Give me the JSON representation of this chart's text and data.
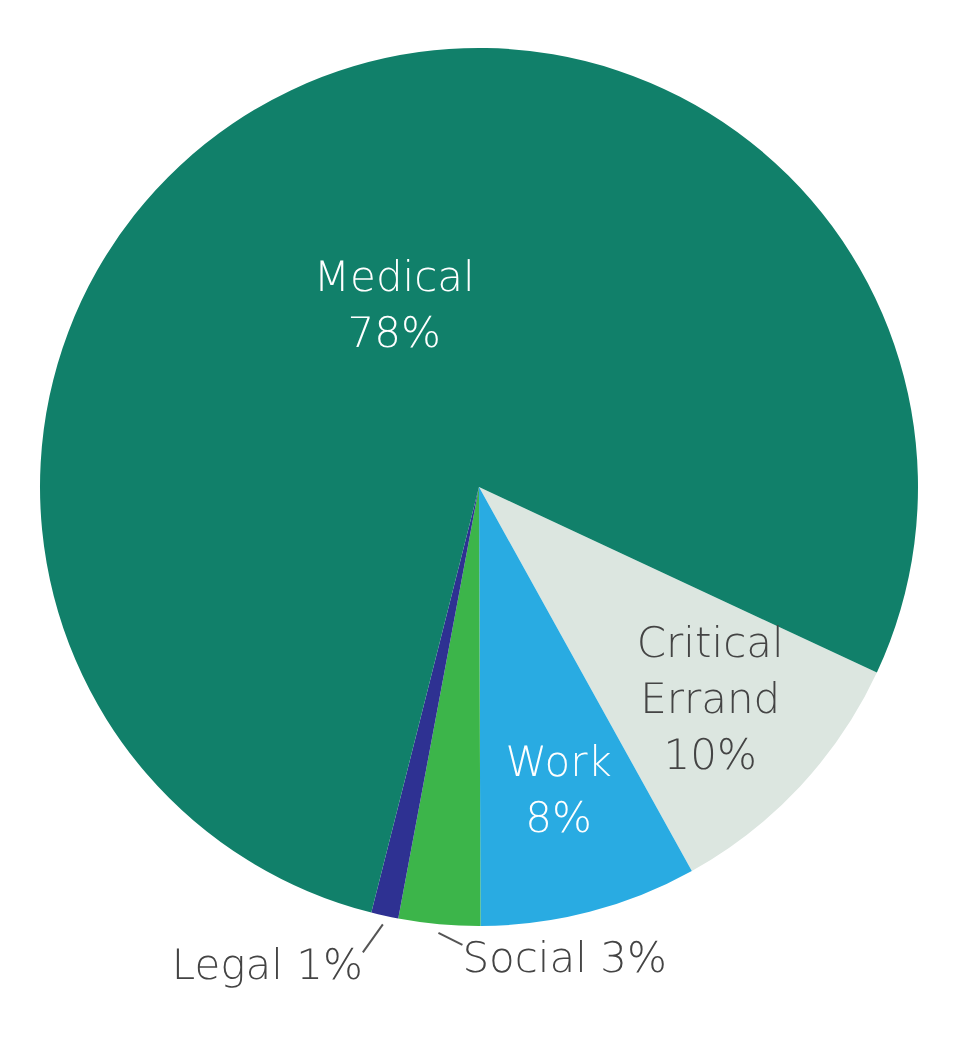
{
  "chart_data": {
    "type": "pie",
    "categories": [
      "Critical Errand",
      "Work",
      "Social",
      "Legal",
      "Medical"
    ],
    "values": [
      10,
      8,
      3,
      1,
      78
    ],
    "colors": [
      "#dce6e0",
      "#29abe2",
      "#3cb54a",
      "#2e3192",
      "#11806a"
    ],
    "value_labels": [
      "10%",
      "8%",
      "3%",
      "1%",
      "78%"
    ],
    "legend": false
  }
}
